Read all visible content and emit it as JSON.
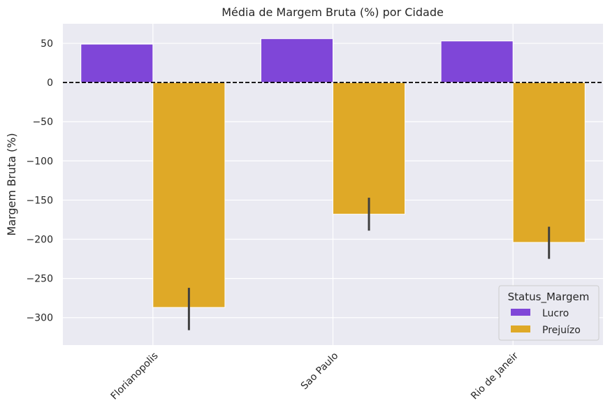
{
  "chart_data": {
    "type": "bar",
    "title": "Média de Margem Bruta (%) por Cidade",
    "xlabel": "",
    "ylabel": "Margem Bruta (%)",
    "categories": [
      "Florianopolis",
      "Sao Paulo",
      "Rio de Janeir"
    ],
    "series": [
      {
        "name": "Lucro",
        "color": "#7f46d8",
        "values": [
          49,
          56,
          53
        ],
        "errors": [
          null,
          null,
          null
        ]
      },
      {
        "name": "Prejuízo",
        "color": "#dfa927",
        "values": [
          -287,
          -168,
          -204
        ],
        "errors": [
          [
            -316,
            -262
          ],
          [
            -189,
            -147
          ],
          [
            -225,
            -184
          ]
        ]
      }
    ],
    "ylim": [
      -335,
      75
    ],
    "yticks": [
      50,
      0,
      -50,
      -100,
      -150,
      -200,
      -250,
      -300
    ],
    "ytick_labels": [
      "50",
      "0",
      "−50",
      "−100",
      "−150",
      "−200",
      "−250",
      "−300"
    ],
    "reference_line": {
      "y": 0,
      "style": "dashed",
      "color": "#000000"
    },
    "grid": true,
    "legend": {
      "title": "Status_Margem",
      "position": "bottom-right"
    },
    "background": "#eaeaf2"
  }
}
